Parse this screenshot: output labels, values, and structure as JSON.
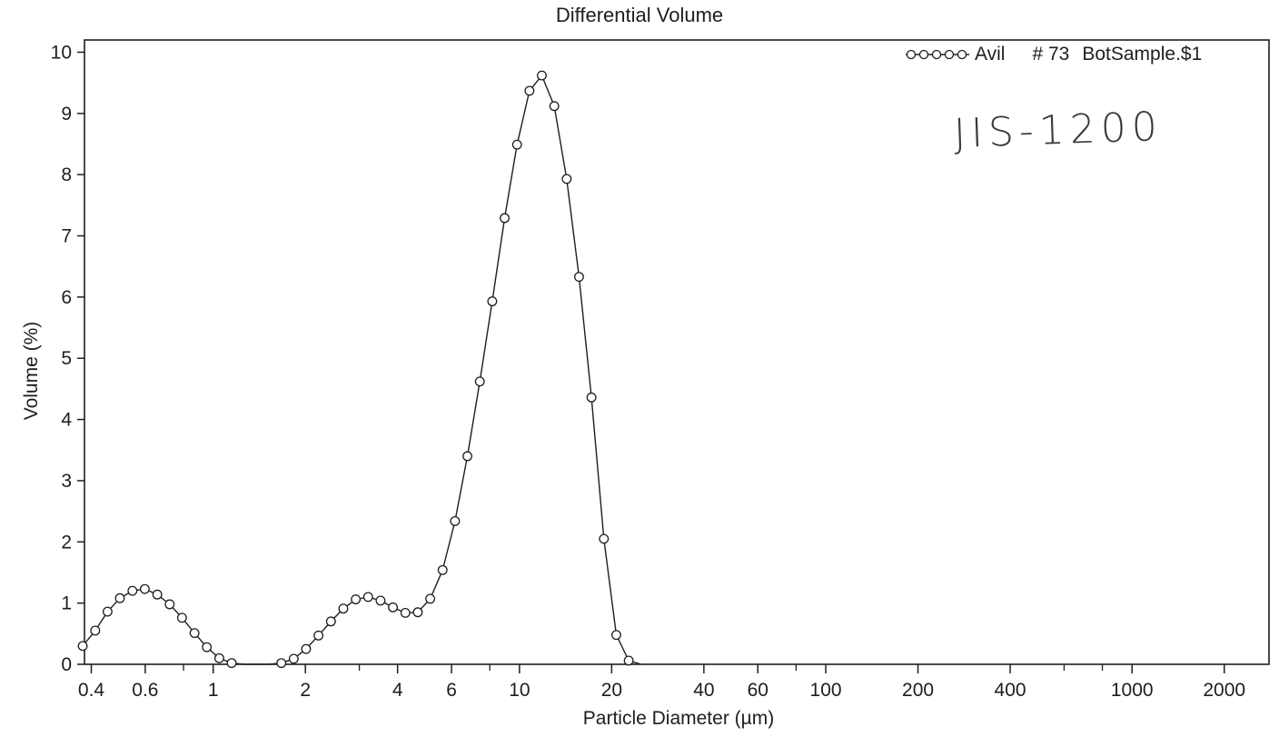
{
  "chart_data": {
    "type": "line",
    "title": "Differential Volume",
    "xlabel": "Particle Diameter (µm)",
    "ylabel": "Volume (%)",
    "x_scale": "log",
    "xlim": [
      0.38,
      2800
    ],
    "ylim": [
      0,
      10.2
    ],
    "grid": false,
    "legend_position": "top-right",
    "x_ticks": [
      {
        "value": 0.4,
        "label": "0.4"
      },
      {
        "value": 0.6,
        "label": "0.6"
      },
      {
        "value": 1,
        "label": "1"
      },
      {
        "value": 2,
        "label": "2"
      },
      {
        "value": 4,
        "label": "4"
      },
      {
        "value": 6,
        "label": "6"
      },
      {
        "value": 10,
        "label": "10"
      },
      {
        "value": 20,
        "label": "20"
      },
      {
        "value": 40,
        "label": "40"
      },
      {
        "value": 60,
        "label": "60"
      },
      {
        "value": 100,
        "label": "100"
      },
      {
        "value": 200,
        "label": "200"
      },
      {
        "value": 400,
        "label": "400"
      },
      {
        "value": 1000,
        "label": "1000"
      },
      {
        "value": 2000,
        "label": "2000"
      }
    ],
    "x_minor_ticks": [
      0.8,
      3,
      8,
      80,
      600,
      800
    ],
    "y_ticks": [
      0,
      1,
      2,
      3,
      4,
      5,
      6,
      7,
      8,
      9,
      10
    ],
    "series": [
      {
        "name": "Avil",
        "marker": "open-circle",
        "color": "#1e1e1e",
        "x": [
          0.375,
          0.412,
          0.452,
          0.496,
          0.545,
          0.598,
          0.657,
          0.721,
          0.791,
          0.869,
          0.953,
          1.047,
          1.149,
          1.261,
          1.385,
          1.52,
          1.669,
          1.832,
          2.01,
          2.207,
          2.423,
          2.66,
          2.92,
          3.206,
          3.519,
          3.863,
          4.241,
          4.656,
          5.111,
          5.611,
          6.159,
          6.761,
          7.422,
          8.148,
          8.944,
          9.819,
          10.78,
          11.83,
          12.99,
          14.26,
          15.65,
          17.18,
          18.86,
          20.71,
          22.73,
          24.95
        ],
        "y": [
          0.3,
          0.55,
          0.86,
          1.08,
          1.2,
          1.23,
          1.14,
          0.98,
          0.76,
          0.51,
          0.28,
          0.1,
          0.02,
          0,
          0,
          0,
          0.02,
          0.09,
          0.25,
          0.47,
          0.7,
          0.91,
          1.06,
          1.1,
          1.04,
          0.93,
          0.84,
          0.85,
          1.07,
          1.54,
          2.34,
          3.4,
          4.62,
          5.93,
          7.29,
          8.49,
          9.37,
          9.62,
          9.12,
          7.93,
          6.33,
          4.36,
          2.05,
          0.48,
          0.06,
          0
        ]
      }
    ]
  },
  "legend": {
    "series_label": "Avil",
    "run_number": "# 73",
    "sample_name": "BotSample.$1"
  },
  "annotation": {
    "handwritten_note": "JIS-1200"
  }
}
